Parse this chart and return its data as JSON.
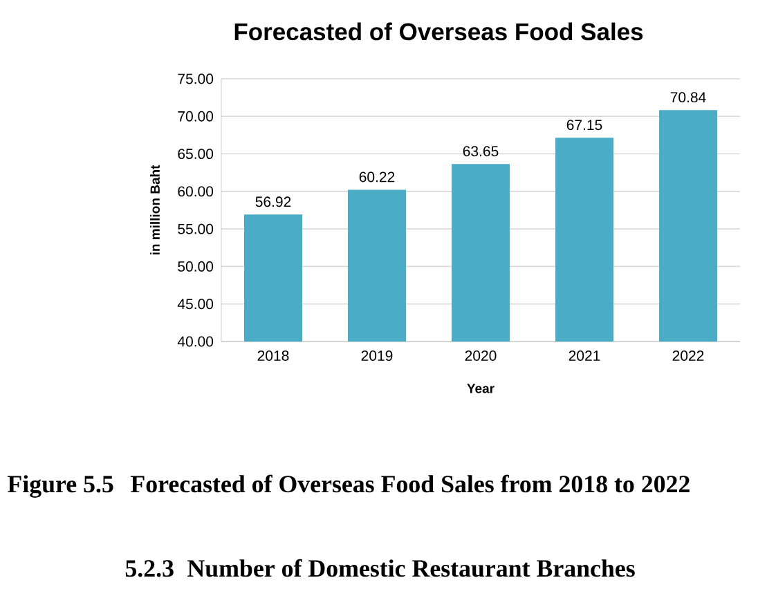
{
  "chart_data": {
    "type": "bar",
    "title": "Forecasted of Overseas Food Sales",
    "xlabel": "Year",
    "ylabel": "in million Baht",
    "categories": [
      "2018",
      "2019",
      "2020",
      "2021",
      "2022"
    ],
    "values": [
      56.92,
      60.22,
      63.65,
      67.15,
      70.84
    ],
    "color": "#4bacc6",
    "ylim": [
      40,
      75
    ],
    "yticks": [
      {
        "value": 40,
        "label": "40.00"
      },
      {
        "value": 45,
        "label": "45.00"
      },
      {
        "value": 50,
        "label": "50.00"
      },
      {
        "value": 55,
        "label": "55.00"
      },
      {
        "value": 60,
        "label": "60.00"
      },
      {
        "value": 65,
        "label": "65.00"
      },
      {
        "value": 70,
        "label": "70.00"
      },
      {
        "value": 75,
        "label": "75.00"
      }
    ],
    "grid": "y",
    "data_labels": true,
    "annotations": [
      "Figure 5.5",
      "Forecasted of Overseas Food Sales from 2018 to 2022",
      "5.2.3",
      "Number of Domestic Restaurant Branches"
    ]
  }
}
